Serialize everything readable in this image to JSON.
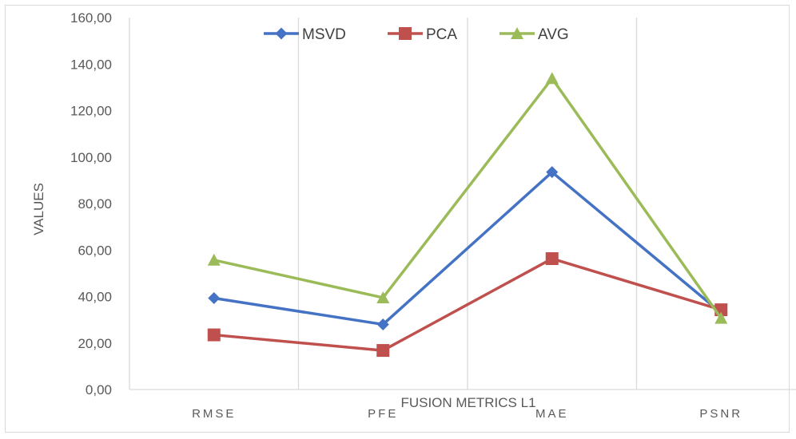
{
  "chart_data": {
    "type": "line",
    "xlabel": "FUSION METRICS L1",
    "ylabel": "VALUES",
    "categories": [
      "RMSE",
      "PFE",
      "MAE",
      "PSNR"
    ],
    "ylim": [
      0,
      160
    ],
    "yticks": [
      "0,00",
      "20,00",
      "40,00",
      "60,00",
      "80,00",
      "100,00",
      "120,00",
      "140,00",
      "160,00"
    ],
    "grid": "vertical",
    "legend_position": "top",
    "series": [
      {
        "name": "MSVD",
        "values": [
          39.3,
          28.0,
          93.5,
          33.0
        ],
        "color": "#4472c4",
        "marker": "diamond"
      },
      {
        "name": "PCA",
        "values": [
          23.5,
          16.8,
          56.3,
          34.3
        ],
        "color": "#c0504d",
        "marker": "square"
      },
      {
        "name": "AVG",
        "values": [
          55.7,
          39.5,
          133.8,
          30.7
        ],
        "color": "#9bbb59",
        "marker": "triangle"
      }
    ]
  }
}
